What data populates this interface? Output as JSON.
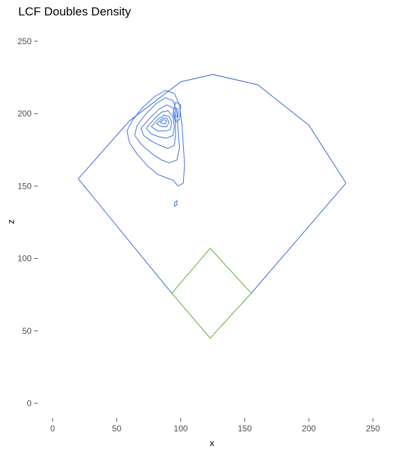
{
  "chart_data": {
    "type": "contour",
    "title": "LCF Doubles Density",
    "xlabel": "x",
    "ylabel": "z",
    "xlim": [
      -12,
      255
    ],
    "ylim": [
      -10,
      262
    ],
    "x_ticks": [
      0,
      50,
      100,
      150,
      200,
      250
    ],
    "y_ticks": [
      0,
      50,
      100,
      150,
      200,
      250
    ],
    "grid": false,
    "field": {
      "outline_color": "#3366cc",
      "outfield_arc": [
        [
          20,
          155
        ],
        [
          60,
          195
        ],
        [
          100,
          222
        ],
        [
          125,
          227
        ],
        [
          160,
          220
        ],
        [
          200,
          192
        ],
        [
          229,
          152
        ]
      ],
      "foul_lines": [
        [
          [
            20,
            155
          ],
          [
            93,
            76
          ]
        ],
        [
          [
            229,
            152
          ],
          [
            155,
            76
          ]
        ]
      ]
    },
    "infield": {
      "color": "#55aa33",
      "diamond": [
        [
          123,
          45
        ],
        [
          155,
          76
        ],
        [
          123,
          107
        ],
        [
          93,
          76
        ]
      ]
    },
    "density_contours": {
      "color": "#3a6fe0",
      "rings": [
        [
          [
            62,
            195
          ],
          [
            70,
            204
          ],
          [
            80,
            212
          ],
          [
            88,
            216
          ],
          [
            95,
            214
          ],
          [
            99,
            206
          ],
          [
            101,
            192
          ],
          [
            102,
            178
          ],
          [
            103,
            165
          ],
          [
            102,
            152
          ],
          [
            98,
            150
          ],
          [
            94,
            154
          ],
          [
            88,
            156
          ],
          [
            82,
            158
          ],
          [
            74,
            164
          ],
          [
            66,
            172
          ],
          [
            60,
            180
          ],
          [
            58,
            188
          ]
        ],
        [
          [
            66,
            192
          ],
          [
            73,
            200
          ],
          [
            81,
            207
          ],
          [
            88,
            211
          ],
          [
            94,
            209
          ],
          [
            97,
            201
          ],
          [
            98,
            188
          ],
          [
            99,
            176
          ],
          [
            97,
            168
          ],
          [
            91,
            166
          ],
          [
            85,
            168
          ],
          [
            78,
            172
          ],
          [
            70,
            178
          ],
          [
            64,
            185
          ]
        ],
        [
          [
            69,
            190
          ],
          [
            76,
            197
          ],
          [
            83,
            203
          ],
          [
            89,
            206
          ],
          [
            94,
            204
          ],
          [
            96,
            196
          ],
          [
            96,
            186
          ],
          [
            95,
            178
          ],
          [
            90,
            176
          ],
          [
            84,
            178
          ],
          [
            77,
            181
          ],
          [
            71,
            185
          ]
        ],
        [
          [
            73,
            190
          ],
          [
            79,
            196
          ],
          [
            85,
            201
          ],
          [
            90,
            202
          ],
          [
            94,
            198
          ],
          [
            95,
            191
          ],
          [
            94,
            185
          ],
          [
            89,
            183
          ],
          [
            83,
            184
          ],
          [
            77,
            186
          ]
        ],
        [
          [
            77,
            191
          ],
          [
            82,
            196
          ],
          [
            87,
            199
          ],
          [
            91,
            198
          ],
          [
            93,
            194
          ],
          [
            92,
            189
          ],
          [
            88,
            188
          ],
          [
            82,
            188
          ]
        ],
        [
          [
            81,
            193
          ],
          [
            86,
            197
          ],
          [
            89,
            197
          ],
          [
            91,
            194
          ],
          [
            89,
            191
          ],
          [
            85,
            191
          ]
        ],
        [
          [
            84,
            194
          ],
          [
            87,
            196
          ],
          [
            89,
            195
          ],
          [
            88,
            193
          ],
          [
            86,
            193
          ]
        ],
        [
          [
            96,
            208
          ],
          [
            100,
            206
          ],
          [
            99,
            196
          ],
          [
            96,
            194
          ],
          [
            94,
            200
          ]
        ],
        [
          [
            96,
            204
          ],
          [
            98,
            203
          ],
          [
            98,
            198
          ],
          [
            96,
            198
          ]
        ],
        [
          [
            95,
            138
          ],
          [
            97,
            140
          ],
          [
            97,
            137
          ],
          [
            95,
            136
          ]
        ]
      ]
    }
  }
}
